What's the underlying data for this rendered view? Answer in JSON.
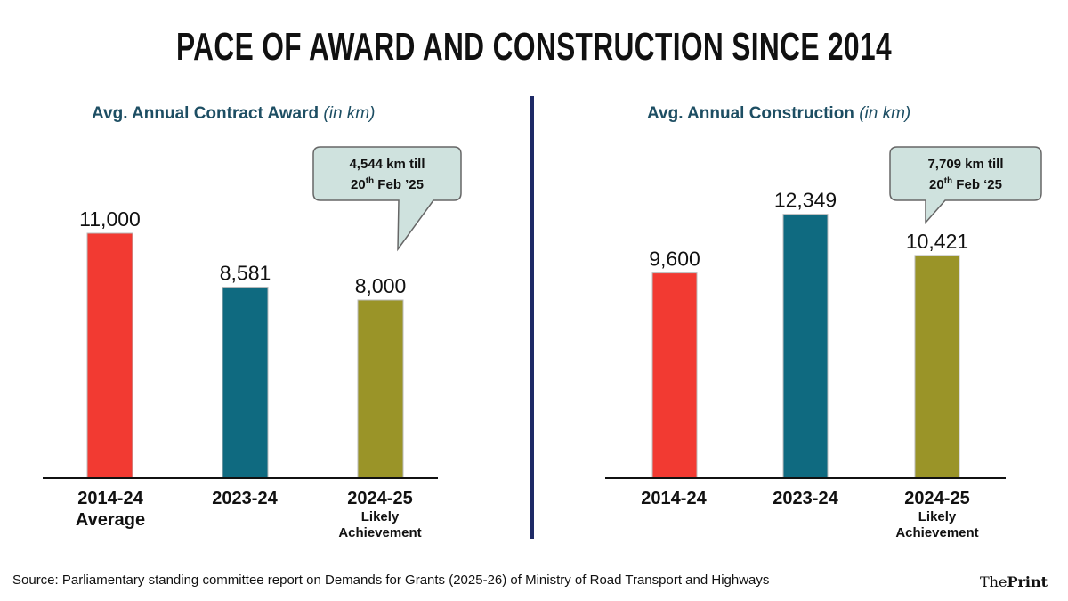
{
  "title": "PACE OF AWARD AND CONSTRUCTION SINCE 2014",
  "chart_data": [
    {
      "type": "bar",
      "title": "Avg. Annual Contract Award",
      "title_unit": "(in km)",
      "categories": [
        "2014-24",
        "2023-24",
        "2024-25"
      ],
      "category_sublabels": [
        "Average",
        "",
        "Likely Achievement"
      ],
      "values": [
        11000,
        8581,
        8000
      ],
      "value_labels": [
        "11,000",
        "8,581",
        "8,000"
      ],
      "colors": [
        "#f23a32",
        "#0f6a80",
        "#9a9428"
      ],
      "annotation": {
        "line1": "4,544 km till",
        "line2_day": "20",
        "line2_sup": "th",
        "line2_rest": " Feb ’25"
      },
      "grid": false
    },
    {
      "type": "bar",
      "title": "Avg. Annual Construction",
      "title_unit": "(in km)",
      "categories": [
        "2014-24",
        "2023-24",
        "2024-25"
      ],
      "category_sublabels": [
        "",
        "",
        "Likely Achievement"
      ],
      "values": [
        9600,
        12349,
        10421
      ],
      "value_labels": [
        "9,600",
        "12,349",
        "10,421"
      ],
      "colors": [
        "#f23a32",
        "#0f6a80",
        "#9a9428"
      ],
      "annotation": {
        "line1": "7,709 km till",
        "line2_day": "20",
        "line2_sup": "th",
        "line2_rest": " Feb ‘25"
      },
      "grid": false
    }
  ],
  "source": "Source: Parliamentary standing committee report on Demands for Grants (2025-26) of Ministry of Road Transport and Highways",
  "logo": "ThePrint"
}
